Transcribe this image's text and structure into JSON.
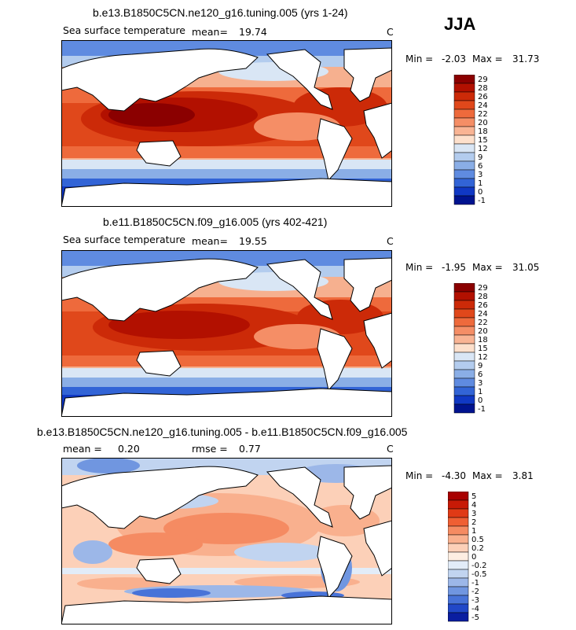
{
  "season": "JJA",
  "chart_data": [
    {
      "type": "heatmap",
      "title": "b.e13.B1850C5CN.ne120_g16.tuning.005 (yrs 1-24)",
      "variable": "Sea surface temperature",
      "mean_label": "mean=",
      "mean": "19.74",
      "units": "C",
      "min_label": "Min =",
      "min": "-2.03",
      "max_label": "Max =",
      "max": "31.73",
      "colorbar_levels": [
        "29",
        "28",
        "26",
        "24",
        "22",
        "20",
        "18",
        "15",
        "12",
        "9",
        "6",
        "3",
        "1",
        "0",
        "-1"
      ],
      "colorbar_colors": [
        "#8b0000",
        "#b21000",
        "#cc2a08",
        "#e0481b",
        "#ee6a3c",
        "#f58e66",
        "#f9b494",
        "#fde0cc",
        "#d9e6f5",
        "#b3ccee",
        "#8aaee6",
        "#5f8be0",
        "#3264d6",
        "#1038c4",
        "#00138f"
      ]
    },
    {
      "type": "heatmap",
      "title": "b.e11.B1850C5CN.f09_g16.005 (yrs 402-421)",
      "variable": "Sea surface temperature",
      "mean_label": "mean=",
      "mean": "19.55",
      "units": "C",
      "min_label": "Min =",
      "min": "-1.95",
      "max_label": "Max =",
      "max": "31.05",
      "colorbar_levels": [
        "29",
        "28",
        "26",
        "24",
        "22",
        "20",
        "18",
        "15",
        "12",
        "9",
        "6",
        "3",
        "1",
        "0",
        "-1"
      ],
      "colorbar_colors": [
        "#8b0000",
        "#b21000",
        "#cc2a08",
        "#e0481b",
        "#ee6a3c",
        "#f58e66",
        "#f9b494",
        "#fde0cc",
        "#d9e6f5",
        "#b3ccee",
        "#8aaee6",
        "#5f8be0",
        "#3264d6",
        "#1038c4",
        "#00138f"
      ]
    },
    {
      "type": "heatmap",
      "title": "b.e13.B1850C5CN.ne120_g16.tuning.005 - b.e11.B1850C5CN.f09_g16.005",
      "mean_label": "mean =",
      "mean": "0.20",
      "rmse_label": "rmse =",
      "rmse": "0.77",
      "units": "C",
      "min_label": "Min =",
      "min": "-4.30",
      "max_label": "Max =",
      "max": "3.81",
      "colorbar_levels": [
        "5",
        "4",
        "3",
        "2",
        "1",
        "0.5",
        "0.2",
        "0",
        "-0.2",
        "-0.5",
        "-1",
        "-2",
        "-3",
        "-4",
        "-5"
      ],
      "colorbar_colors": [
        "#a80000",
        "#c81a06",
        "#e03a16",
        "#ef5f33",
        "#f58b62",
        "#f9b08e",
        "#fcd0b8",
        "#fdeee2",
        "#e2ecf8",
        "#c1d4f0",
        "#9cb7e8",
        "#7096e0",
        "#4873d8",
        "#2148c8",
        "#0a1ea0"
      ]
    }
  ]
}
